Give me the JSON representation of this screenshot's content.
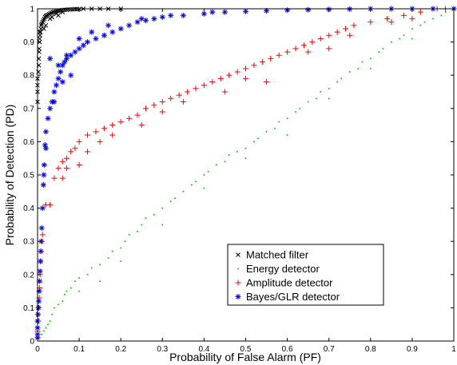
{
  "chart_data": {
    "type": "scatter",
    "xlabel": "Probability of False Alarm (PF)",
    "ylabel": "Probability of Detection (PD)",
    "xlim": [
      0,
      1
    ],
    "ylim": [
      0,
      1
    ],
    "xticks": [
      "0",
      "0.1",
      "0.2",
      "0.3",
      "0.4",
      "0.5",
      "0.6",
      "0.7",
      "0.8",
      "0.9",
      "1"
    ],
    "yticks": [
      "0",
      "0.1",
      "0.2",
      "0.3",
      "0.4",
      "0.5",
      "0.6",
      "0.7",
      "0.8",
      "0.9",
      "1"
    ],
    "grid": false,
    "legend_position": "lower-right",
    "series": [
      {
        "name": "Matched filter",
        "marker": "x",
        "color": "#000000",
        "points": [
          [
            0.0,
            0.72
          ],
          [
            0.0,
            0.75
          ],
          [
            0.0,
            0.77
          ],
          [
            0.0,
            0.79
          ],
          [
            0.002,
            0.81
          ],
          [
            0.003,
            0.83
          ],
          [
            0.003,
            0.85
          ],
          [
            0.004,
            0.87
          ],
          [
            0.004,
            0.88
          ],
          [
            0.005,
            0.9
          ],
          [
            0.005,
            0.91
          ],
          [
            0.006,
            0.92
          ],
          [
            0.007,
            0.93
          ],
          [
            0.008,
            0.94
          ],
          [
            0.009,
            0.95
          ],
          [
            0.01,
            0.955
          ],
          [
            0.012,
            0.96
          ],
          [
            0.014,
            0.965
          ],
          [
            0.016,
            0.97
          ],
          [
            0.018,
            0.975
          ],
          [
            0.02,
            0.978
          ],
          [
            0.022,
            0.98
          ],
          [
            0.025,
            0.982
          ],
          [
            0.028,
            0.984
          ],
          [
            0.031,
            0.986
          ],
          [
            0.034,
            0.988
          ],
          [
            0.037,
            0.99
          ],
          [
            0.04,
            0.991
          ],
          [
            0.044,
            0.992
          ],
          [
            0.048,
            0.993
          ],
          [
            0.052,
            0.994
          ],
          [
            0.056,
            0.995
          ],
          [
            0.06,
            0.996
          ],
          [
            0.065,
            0.997
          ],
          [
            0.07,
            0.997
          ],
          [
            0.075,
            0.998
          ],
          [
            0.08,
            0.998
          ],
          [
            0.085,
            0.998
          ],
          [
            0.09,
            0.999
          ],
          [
            0.095,
            0.999
          ],
          [
            0.1,
            0.999
          ],
          [
            0.11,
            1.0
          ],
          [
            0.13,
            1.0
          ],
          [
            0.15,
            1.0
          ],
          [
            0.17,
            1.0
          ],
          [
            0.2,
            1.0
          ],
          [
            0.06,
            0.99
          ],
          [
            0.045,
            0.985
          ],
          [
            0.05,
            0.98
          ],
          [
            0.035,
            0.975
          ],
          [
            0.03,
            0.97
          ],
          [
            0.015,
            0.94
          ],
          [
            0.02,
            0.95
          ],
          [
            0.005,
            0.93
          ]
        ]
      },
      {
        "name": "Energy detector",
        "marker": "dot",
        "color": "#00cc00",
        "points": [
          [
            0.0,
            0.01
          ],
          [
            0.01,
            0.02
          ],
          [
            0.015,
            0.03
          ],
          [
            0.02,
            0.04
          ],
          [
            0.025,
            0.05
          ],
          [
            0.03,
            0.06
          ],
          [
            0.035,
            0.08
          ],
          [
            0.04,
            0.1
          ],
          [
            0.05,
            0.11
          ],
          [
            0.06,
            0.12
          ],
          [
            0.065,
            0.14
          ],
          [
            0.07,
            0.15
          ],
          [
            0.08,
            0.16
          ],
          [
            0.09,
            0.18
          ],
          [
            0.1,
            0.19
          ],
          [
            0.12,
            0.2
          ],
          [
            0.13,
            0.22
          ],
          [
            0.15,
            0.23
          ],
          [
            0.17,
            0.25
          ],
          [
            0.18,
            0.27
          ],
          [
            0.2,
            0.28
          ],
          [
            0.21,
            0.3
          ],
          [
            0.22,
            0.32
          ],
          [
            0.24,
            0.33
          ],
          [
            0.25,
            0.35
          ],
          [
            0.26,
            0.37
          ],
          [
            0.28,
            0.38
          ],
          [
            0.3,
            0.4
          ],
          [
            0.32,
            0.42
          ],
          [
            0.33,
            0.43
          ],
          [
            0.35,
            0.45
          ],
          [
            0.37,
            0.47
          ],
          [
            0.38,
            0.48
          ],
          [
            0.4,
            0.5
          ],
          [
            0.41,
            0.51
          ],
          [
            0.43,
            0.53
          ],
          [
            0.45,
            0.54
          ],
          [
            0.46,
            0.56
          ],
          [
            0.48,
            0.57
          ],
          [
            0.5,
            0.58
          ],
          [
            0.52,
            0.6
          ],
          [
            0.53,
            0.61
          ],
          [
            0.55,
            0.63
          ],
          [
            0.57,
            0.64
          ],
          [
            0.58,
            0.66
          ],
          [
            0.6,
            0.67
          ],
          [
            0.62,
            0.69
          ],
          [
            0.63,
            0.7
          ],
          [
            0.65,
            0.72
          ],
          [
            0.67,
            0.73
          ],
          [
            0.68,
            0.75
          ],
          [
            0.7,
            0.76
          ],
          [
            0.72,
            0.78
          ],
          [
            0.73,
            0.79
          ],
          [
            0.75,
            0.81
          ],
          [
            0.77,
            0.82
          ],
          [
            0.78,
            0.84
          ],
          [
            0.8,
            0.85
          ],
          [
            0.82,
            0.87
          ],
          [
            0.83,
            0.88
          ],
          [
            0.85,
            0.9
          ],
          [
            0.87,
            0.91
          ],
          [
            0.88,
            0.92
          ],
          [
            0.9,
            0.94
          ],
          [
            0.92,
            0.95
          ],
          [
            0.93,
            0.96
          ],
          [
            0.95,
            0.97
          ],
          [
            0.97,
            0.98
          ],
          [
            0.98,
            0.99
          ],
          [
            1.0,
            1.0
          ],
          [
            0.1,
            0.15
          ],
          [
            0.15,
            0.18
          ],
          [
            0.2,
            0.24
          ],
          [
            0.3,
            0.35
          ],
          [
            0.4,
            0.46
          ],
          [
            0.5,
            0.55
          ],
          [
            0.6,
            0.62
          ],
          [
            0.7,
            0.73
          ],
          [
            0.8,
            0.82
          ],
          [
            0.9,
            0.91
          ]
        ]
      },
      {
        "name": "Amplitude detector",
        "marker": "+",
        "color": "#ff0000",
        "points": [
          [
            0.0,
            0.01
          ],
          [
            0.0,
            0.03
          ],
          [
            0.002,
            0.06
          ],
          [
            0.003,
            0.1
          ],
          [
            0.004,
            0.13
          ],
          [
            0.005,
            0.16
          ],
          [
            0.006,
            0.2
          ],
          [
            0.007,
            0.24
          ],
          [
            0.008,
            0.27
          ],
          [
            0.01,
            0.3
          ],
          [
            0.012,
            0.32
          ],
          [
            0.02,
            0.41
          ],
          [
            0.03,
            0.41
          ],
          [
            0.04,
            0.49
          ],
          [
            0.05,
            0.52
          ],
          [
            0.06,
            0.54
          ],
          [
            0.07,
            0.55
          ],
          [
            0.08,
            0.57
          ],
          [
            0.09,
            0.58
          ],
          [
            0.1,
            0.6
          ],
          [
            0.12,
            0.62
          ],
          [
            0.14,
            0.63
          ],
          [
            0.16,
            0.64
          ],
          [
            0.18,
            0.65
          ],
          [
            0.2,
            0.66
          ],
          [
            0.22,
            0.67
          ],
          [
            0.24,
            0.68
          ],
          [
            0.26,
            0.7
          ],
          [
            0.28,
            0.71
          ],
          [
            0.3,
            0.72
          ],
          [
            0.32,
            0.73
          ],
          [
            0.34,
            0.74
          ],
          [
            0.36,
            0.75
          ],
          [
            0.38,
            0.76
          ],
          [
            0.4,
            0.77
          ],
          [
            0.42,
            0.78
          ],
          [
            0.44,
            0.79
          ],
          [
            0.46,
            0.8
          ],
          [
            0.48,
            0.81
          ],
          [
            0.5,
            0.82
          ],
          [
            0.52,
            0.83
          ],
          [
            0.54,
            0.84
          ],
          [
            0.56,
            0.85
          ],
          [
            0.58,
            0.86
          ],
          [
            0.6,
            0.87
          ],
          [
            0.62,
            0.88
          ],
          [
            0.64,
            0.89
          ],
          [
            0.66,
            0.9
          ],
          [
            0.68,
            0.91
          ],
          [
            0.7,
            0.92
          ],
          [
            0.72,
            0.93
          ],
          [
            0.74,
            0.94
          ],
          [
            0.76,
            0.95
          ],
          [
            0.8,
            0.96
          ],
          [
            0.84,
            0.97
          ],
          [
            0.88,
            0.98
          ],
          [
            0.92,
            0.99
          ],
          [
            0.96,
            1.0
          ],
          [
            0.98,
            1.0
          ],
          [
            0.07,
            0.52
          ],
          [
            0.1,
            0.53
          ],
          [
            0.15,
            0.6
          ],
          [
            0.25,
            0.65
          ],
          [
            0.35,
            0.72
          ],
          [
            0.45,
            0.75
          ],
          [
            0.55,
            0.78
          ],
          [
            0.65,
            0.87
          ],
          [
            0.75,
            0.92
          ],
          [
            0.85,
            0.96
          ],
          [
            0.06,
            0.49
          ],
          [
            0.12,
            0.57
          ],
          [
            0.18,
            0.62
          ],
          [
            0.3,
            0.69
          ],
          [
            0.5,
            0.79
          ],
          [
            0.7,
            0.88
          ],
          [
            0.9,
            0.97
          ]
        ]
      },
      {
        "name": "Bayes/GLR detector",
        "marker": "*",
        "color": "#0000ff",
        "points": [
          [
            0.0,
            0.01
          ],
          [
            0.0,
            0.02
          ],
          [
            0.0,
            0.04
          ],
          [
            0.0,
            0.06
          ],
          [
            0.001,
            0.08
          ],
          [
            0.002,
            0.1
          ],
          [
            0.003,
            0.12
          ],
          [
            0.004,
            0.15
          ],
          [
            0.005,
            0.18
          ],
          [
            0.006,
            0.21
          ],
          [
            0.007,
            0.24
          ],
          [
            0.008,
            0.27
          ],
          [
            0.009,
            0.3
          ],
          [
            0.01,
            0.34
          ],
          [
            0.012,
            0.4
          ],
          [
            0.014,
            0.47
          ],
          [
            0.016,
            0.53
          ],
          [
            0.018,
            0.59
          ],
          [
            0.02,
            0.63
          ],
          [
            0.025,
            0.67
          ],
          [
            0.03,
            0.7
          ],
          [
            0.035,
            0.72
          ],
          [
            0.04,
            0.75
          ],
          [
            0.045,
            0.77
          ],
          [
            0.05,
            0.79
          ],
          [
            0.055,
            0.81
          ],
          [
            0.06,
            0.83
          ],
          [
            0.065,
            0.84
          ],
          [
            0.07,
            0.85
          ],
          [
            0.08,
            0.86
          ],
          [
            0.09,
            0.87
          ],
          [
            0.1,
            0.88
          ],
          [
            0.11,
            0.89
          ],
          [
            0.12,
            0.9
          ],
          [
            0.14,
            0.91
          ],
          [
            0.16,
            0.92
          ],
          [
            0.18,
            0.93
          ],
          [
            0.2,
            0.94
          ],
          [
            0.22,
            0.95
          ],
          [
            0.24,
            0.96
          ],
          [
            0.26,
            0.965
          ],
          [
            0.28,
            0.97
          ],
          [
            0.3,
            0.975
          ],
          [
            0.35,
            0.98
          ],
          [
            0.4,
            0.985
          ],
          [
            0.45,
            0.99
          ],
          [
            0.5,
            0.992
          ],
          [
            0.55,
            0.994
          ],
          [
            0.6,
            0.996
          ],
          [
            0.65,
            0.997
          ],
          [
            0.7,
            0.998
          ],
          [
            0.75,
            0.999
          ],
          [
            0.8,
            1.0
          ],
          [
            0.85,
            1.0
          ],
          [
            0.9,
            1.0
          ],
          [
            0.95,
            1.0
          ],
          [
            1.0,
            1.0
          ],
          [
            0.03,
            0.85
          ],
          [
            0.05,
            0.83
          ],
          [
            0.07,
            0.86
          ],
          [
            0.1,
            0.91
          ],
          [
            0.13,
            0.93
          ],
          [
            0.17,
            0.95
          ],
          [
            0.25,
            0.97
          ],
          [
            0.32,
            0.98
          ],
          [
            0.42,
            0.99
          ],
          [
            0.08,
            0.8
          ],
          [
            0.06,
            0.78
          ],
          [
            0.04,
            0.72
          ],
          [
            0.02,
            0.58
          ],
          [
            0.015,
            0.5
          ]
        ]
      }
    ]
  }
}
